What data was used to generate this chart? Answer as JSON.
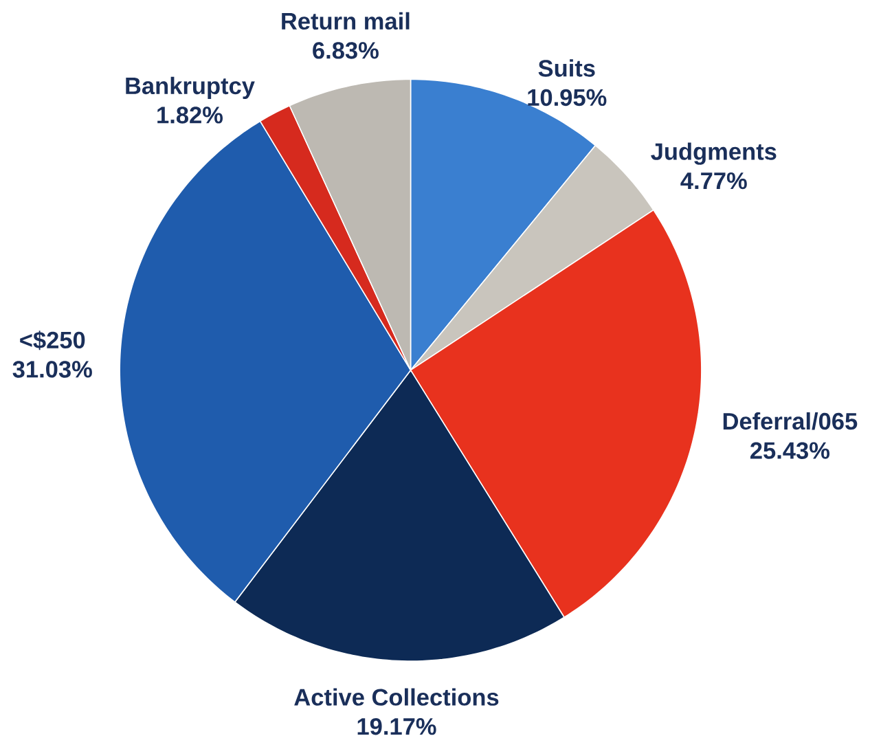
{
  "chart_data": {
    "type": "pie",
    "categories": [
      "Suits",
      "Judgments",
      "Deferral/065",
      "Active Collections",
      "<$250",
      "Bankruptcy",
      "Return mail"
    ],
    "values": [
      10.95,
      4.77,
      25.43,
      19.17,
      31.03,
      1.82,
      6.83
    ],
    "value_labels": [
      "10.95%",
      "4.77%",
      "25.43%",
      "19.17%",
      "31.03%",
      "1.82%",
      "6.83%"
    ],
    "colors": [
      "#3a7fd0",
      "#c9c5bd",
      "#e8321e",
      "#0d2a55",
      "#1f5cad",
      "#d62a1e",
      "#bdb9b2"
    ]
  }
}
